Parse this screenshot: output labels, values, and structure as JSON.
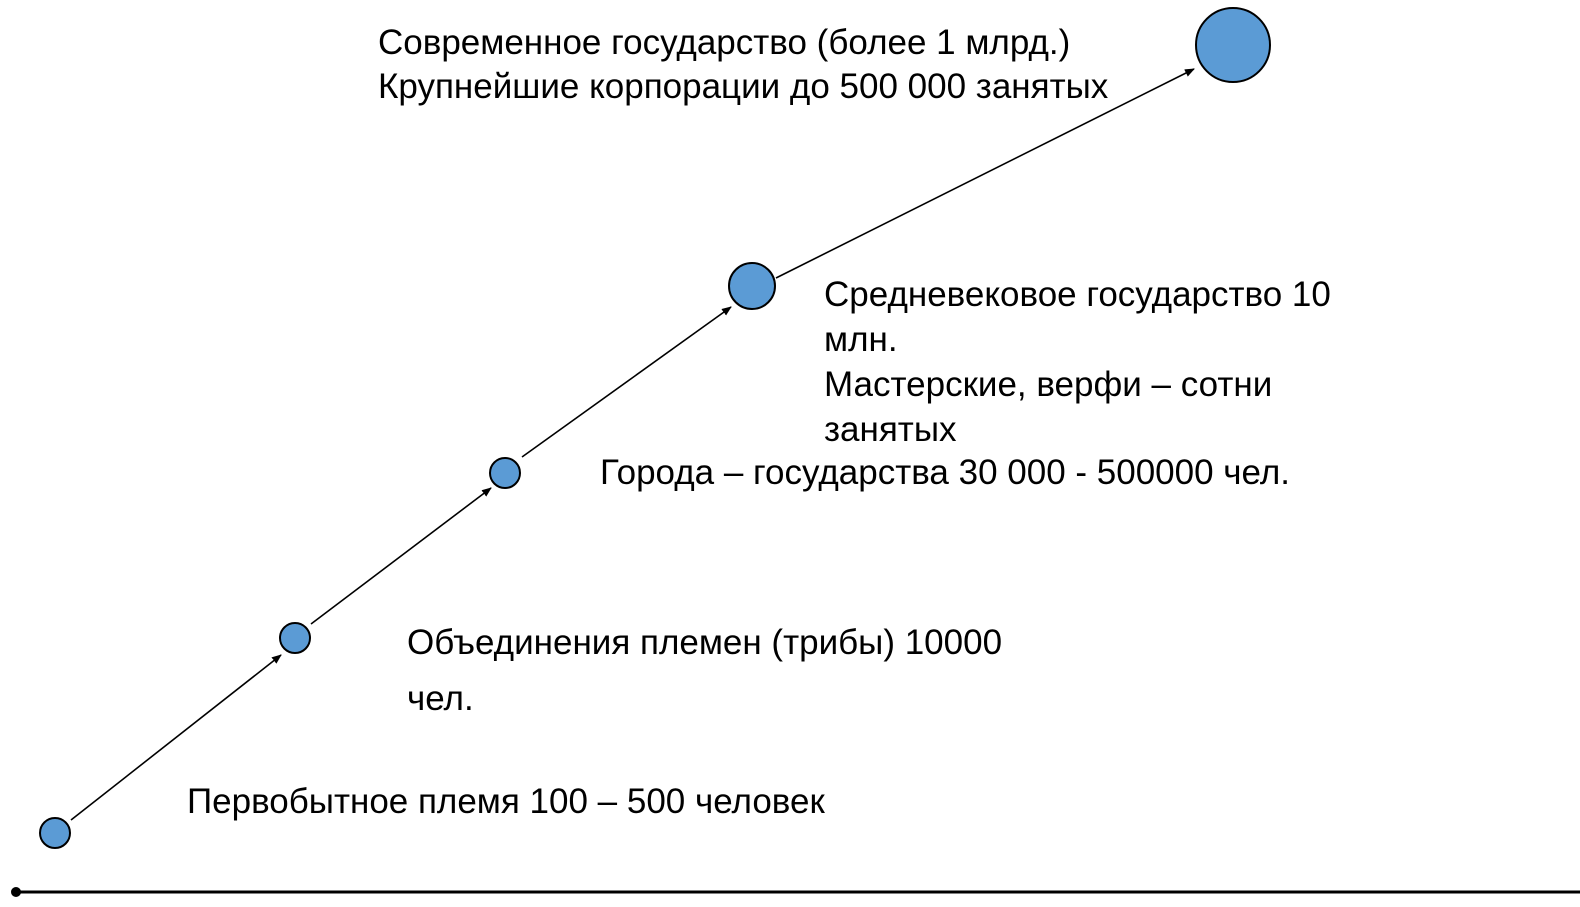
{
  "colors": {
    "node_fill": "#5b9bd5",
    "node_stroke": "#000000",
    "arrow": "#000000",
    "baseline": "#000000"
  },
  "stages": [
    {
      "id": "primitive",
      "lines": [
        "Первобытное племя 100 – 500 человек"
      ]
    },
    {
      "id": "union",
      "lines": [
        "Объединения племен (трибы) 10000",
        "чел."
      ]
    },
    {
      "id": "city",
      "lines": [
        "Города – государства 30 000  - 500000 чел."
      ]
    },
    {
      "id": "medieval",
      "lines": [
        "Средневековое государство 10",
        "млн.",
        "Мастерские, верфи – сотни",
        "занятых"
      ]
    },
    {
      "id": "modern",
      "lines": [
        "Современное государство (более 1 млрд.)",
        "Крупнейшие корпорации до 500 000 занятых"
      ]
    }
  ]
}
